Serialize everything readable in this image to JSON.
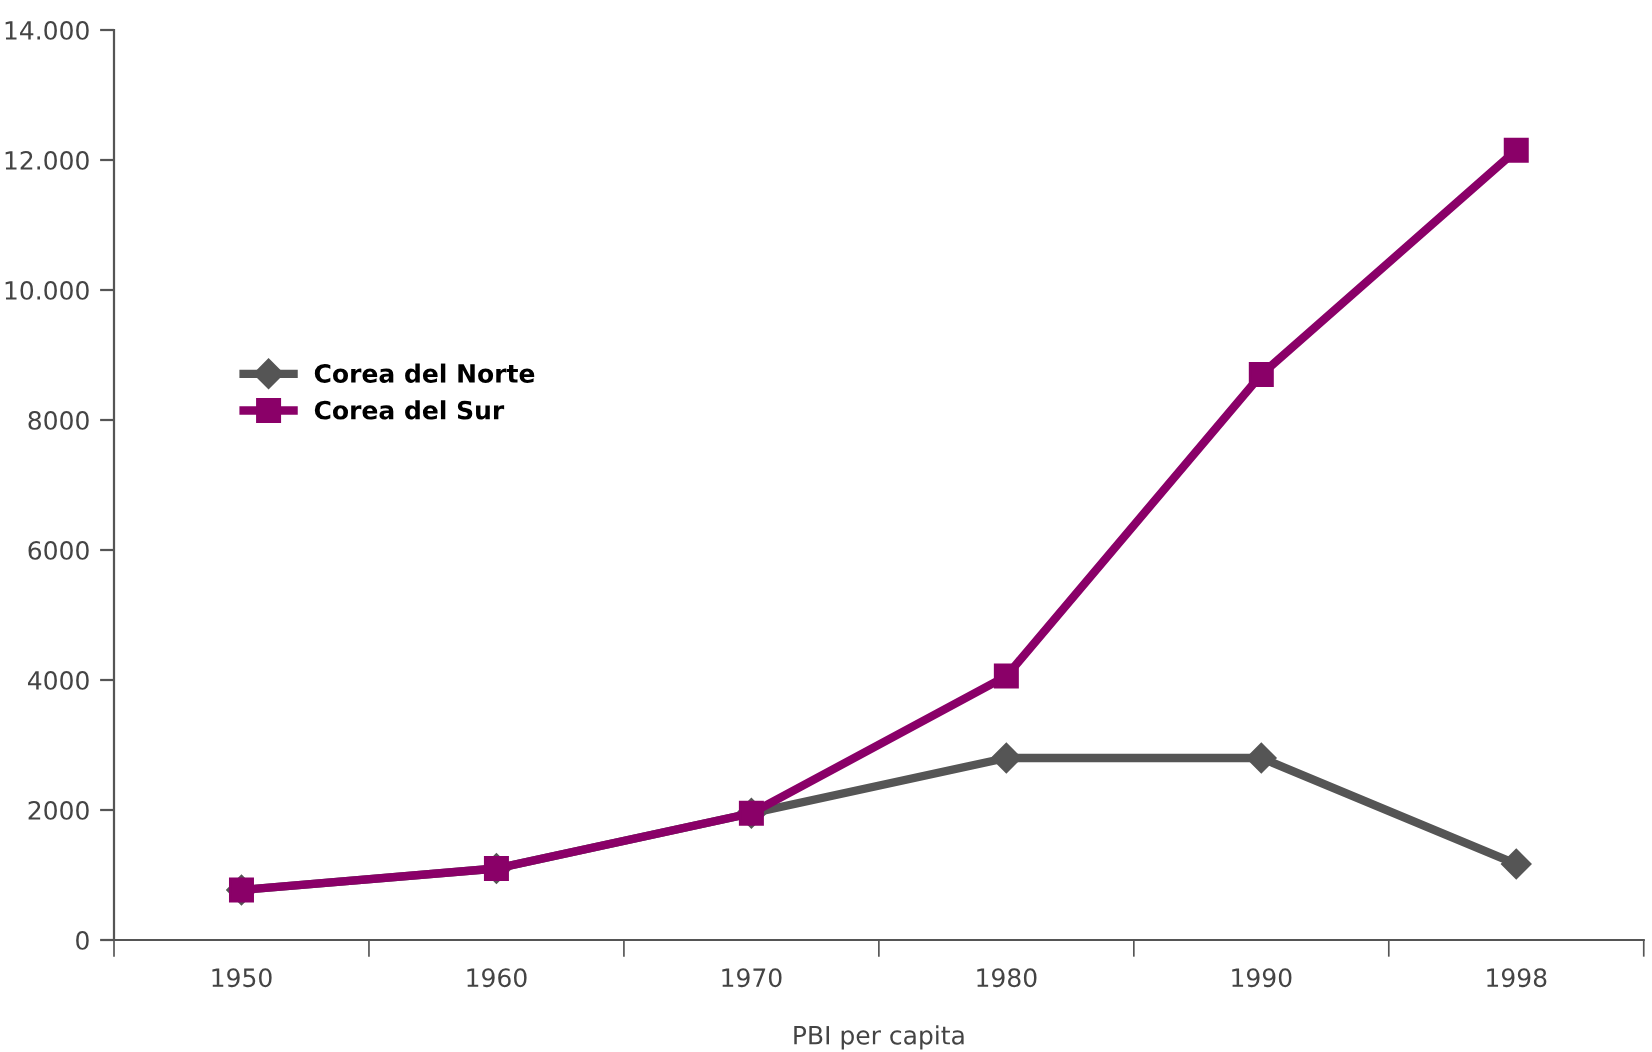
{
  "chart_data": {
    "type": "line",
    "xlabel": "PBI per capita",
    "categories": [
      "1950",
      "1960",
      "1970",
      "1980",
      "1990",
      "1998"
    ],
    "series": [
      {
        "name": "Corea del Norte",
        "color": "#555555",
        "marker": "diamond",
        "values": [
          770,
          1100,
          1950,
          2800,
          2800,
          1170
        ]
      },
      {
        "name": "Corea del Sur",
        "color": "#8a0068",
        "marker": "square",
        "values": [
          770,
          1100,
          1950,
          4060,
          8700,
          12150
        ]
      }
    ],
    "ylim": [
      0,
      14000
    ],
    "yticks": [
      0,
      2000,
      4000,
      6000,
      8000,
      {
        "value": 10000,
        "label": "10.000"
      },
      {
        "value": 12000,
        "label": "12.000"
      },
      {
        "value": 14000,
        "label": "14.000"
      }
    ],
    "grid": false,
    "legend": "left",
    "line_style": "solid"
  }
}
